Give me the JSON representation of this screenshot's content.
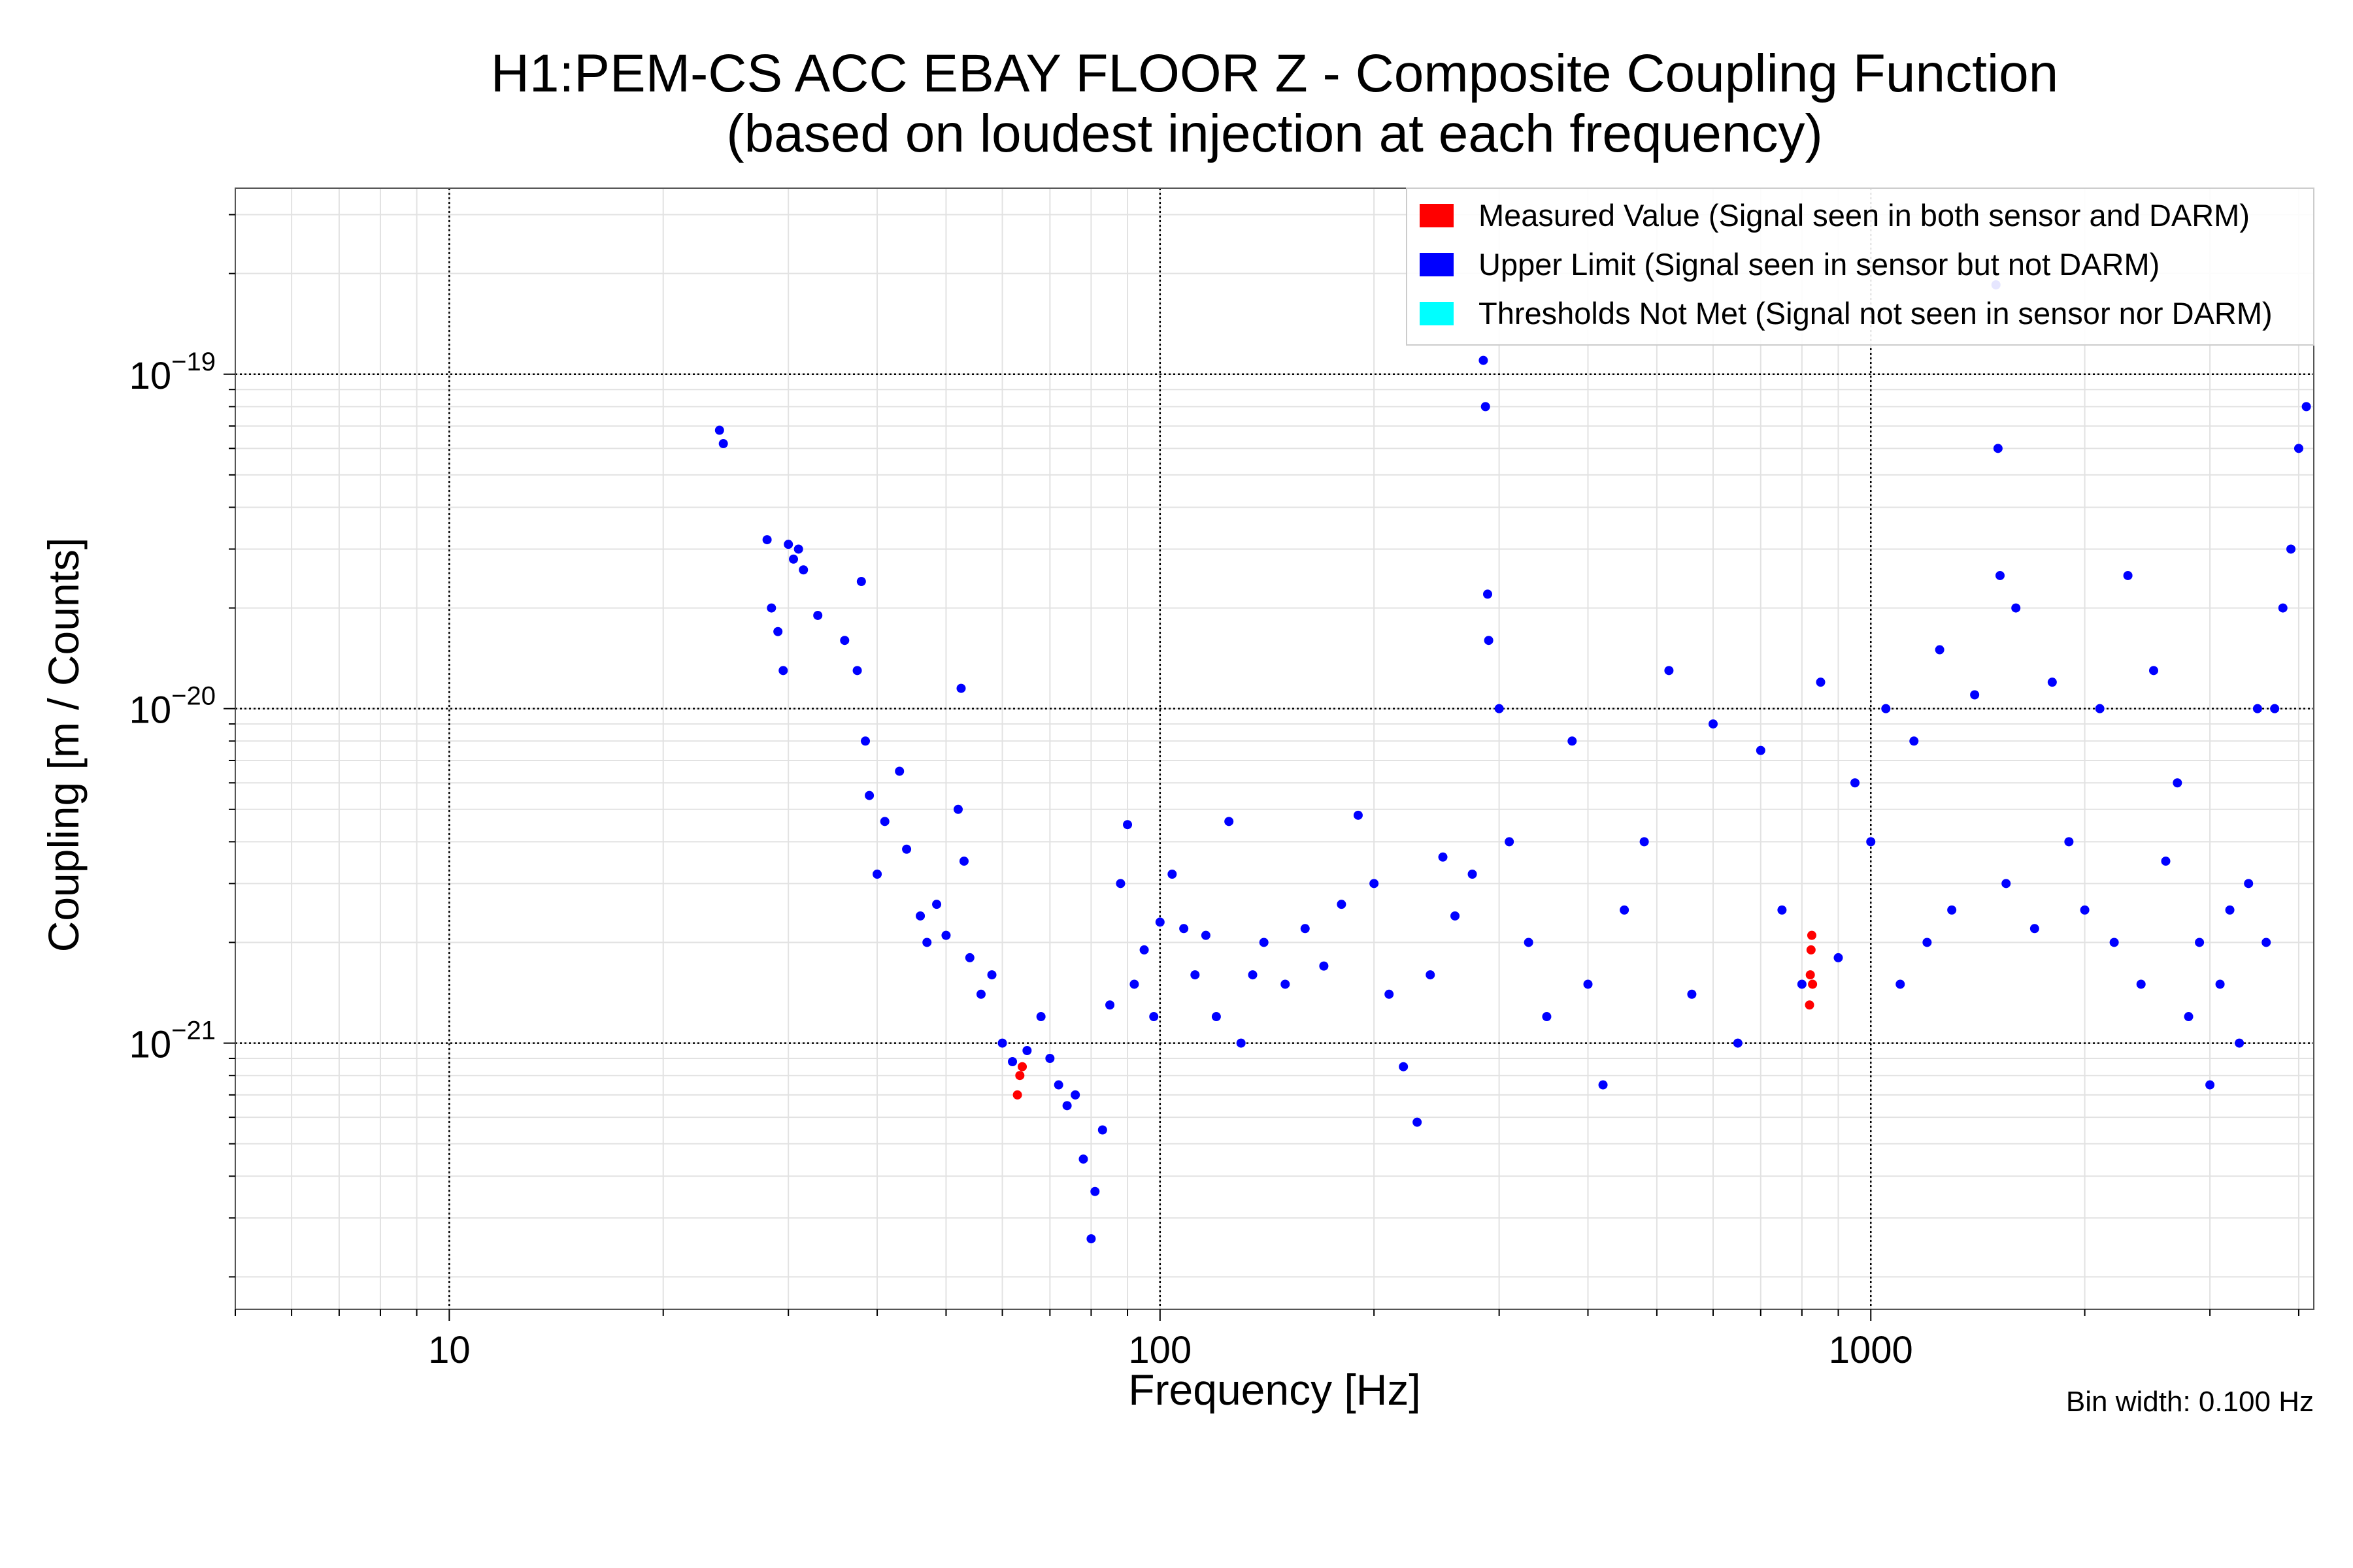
{
  "chart_data": {
    "type": "scatter",
    "title_lines": [
      "H1:PEM-CS ACC EBAY FLOOR Z - Composite Coupling Function",
      "(based on loudest injection at each frequency)"
    ],
    "xlabel": "Frequency [Hz]",
    "ylabel": "Coupling [m / Counts]",
    "xscale": "log",
    "yscale": "log",
    "xlim": [
      5,
      4200
    ],
    "ylim": [
      1.6e-22,
      3.6e-19
    ],
    "x_ticks": [
      {
        "value": 10,
        "label": "10"
      },
      {
        "value": 100,
        "label": "100"
      },
      {
        "value": 1000,
        "label": "1000"
      }
    ],
    "y_ticks": [
      {
        "value": 1e-21,
        "base": "10",
        "exp": "−21"
      },
      {
        "value": 1e-20,
        "base": "10",
        "exp": "−20"
      },
      {
        "value": 1e-19,
        "base": "10",
        "exp": "−19"
      }
    ],
    "grid": true,
    "legend_position": "top-right",
    "legend": [
      {
        "label": "Measured Value (Signal seen in both sensor and DARM)",
        "color": "#ff0000"
      },
      {
        "label": "Upper Limit (Signal seen in sensor but not DARM)",
        "color": "#0000ff"
      },
      {
        "label": "Thresholds Not Met (Signal not seen in sensor nor DARM)",
        "color": "#00ffff"
      }
    ],
    "annotation": "Bin width: 0.100 Hz",
    "series": [
      {
        "color": "#0000ff",
        "points": [
          [
            24.0,
            6.8e-20
          ],
          [
            24.3,
            6.2e-20
          ],
          [
            28.0,
            3.2e-20
          ],
          [
            28.4,
            2e-20
          ],
          [
            29.0,
            1.7e-20
          ],
          [
            29.5,
            1.3e-20
          ],
          [
            30.0,
            3.1e-20
          ],
          [
            30.5,
            2.8e-20
          ],
          [
            31.0,
            3e-20
          ],
          [
            31.5,
            2.6e-20
          ],
          [
            33.0,
            1.9e-20
          ],
          [
            36.0,
            1.6e-20
          ],
          [
            37.5,
            1.3e-20
          ],
          [
            38.0,
            2.4e-20
          ],
          [
            38.5,
            8e-21
          ],
          [
            39.0,
            5.5e-21
          ],
          [
            40.0,
            3.2e-21
          ],
          [
            41.0,
            4.6e-21
          ],
          [
            43.0,
            6.5e-21
          ],
          [
            44.0,
            3.8e-21
          ],
          [
            46.0,
            2.4e-21
          ],
          [
            47.0,
            2e-21
          ],
          [
            48.5,
            2.6e-21
          ],
          [
            50.0,
            2.1e-21
          ],
          [
            52.5,
            1.15e-20
          ],
          [
            52.0,
            5e-21
          ],
          [
            53.0,
            3.5e-21
          ],
          [
            54.0,
            1.8e-21
          ],
          [
            56.0,
            1.4e-21
          ],
          [
            58.0,
            1.6e-21
          ],
          [
            60.0,
            1e-21
          ],
          [
            62.0,
            8.8e-22
          ],
          [
            65.0,
            9.5e-22
          ],
          [
            68.0,
            1.2e-21
          ],
          [
            70.0,
            9e-22
          ],
          [
            72.0,
            7.5e-22
          ],
          [
            74.0,
            6.5e-22
          ],
          [
            76.0,
            7e-22
          ],
          [
            78.0,
            4.5e-22
          ],
          [
            80.0,
            2.6e-22
          ],
          [
            81.0,
            3.6e-22
          ],
          [
            83.0,
            5.5e-22
          ],
          [
            85.0,
            1.3e-21
          ],
          [
            88.0,
            3e-21
          ],
          [
            90.0,
            4.5e-21
          ],
          [
            92.0,
            1.5e-21
          ],
          [
            95.0,
            1.9e-21
          ],
          [
            98.0,
            1.2e-21
          ],
          [
            100.0,
            2.3e-21
          ],
          [
            104.0,
            3.2e-21
          ],
          [
            108.0,
            2.2e-21
          ],
          [
            112.0,
            1.6e-21
          ],
          [
            116.0,
            2.1e-21
          ],
          [
            120.0,
            1.2e-21
          ],
          [
            125.0,
            4.6e-21
          ],
          [
            130.0,
            1e-21
          ],
          [
            135.0,
            1.6e-21
          ],
          [
            140.0,
            2e-21
          ],
          [
            150.0,
            1.5e-21
          ],
          [
            160.0,
            2.2e-21
          ],
          [
            170.0,
            1.7e-21
          ],
          [
            180.0,
            2.6e-21
          ],
          [
            190.0,
            4.8e-21
          ],
          [
            200.0,
            3e-21
          ],
          [
            210.0,
            1.4e-21
          ],
          [
            220.0,
            8.5e-22
          ],
          [
            230.0,
            5.8e-22
          ],
          [
            240.0,
            1.6e-21
          ],
          [
            250.0,
            3.6e-21
          ],
          [
            260.0,
            2.4e-21
          ],
          [
            275.0,
            3.2e-21
          ],
          [
            285.0,
            1.1e-19
          ],
          [
            287.0,
            8e-20
          ],
          [
            289.0,
            2.2e-20
          ],
          [
            290.0,
            1.6e-20
          ],
          [
            300.0,
            1e-20
          ],
          [
            310.0,
            4e-21
          ],
          [
            330.0,
            2e-21
          ],
          [
            350.0,
            1.2e-21
          ],
          [
            380.0,
            8e-21
          ],
          [
            400.0,
            1.5e-21
          ],
          [
            420.0,
            7.5e-22
          ],
          [
            450.0,
            2.5e-21
          ],
          [
            480.0,
            4e-21
          ],
          [
            520.0,
            1.3e-20
          ],
          [
            560.0,
            1.4e-21
          ],
          [
            600.0,
            9e-21
          ],
          [
            650.0,
            1e-21
          ],
          [
            700.0,
            7.5e-21
          ],
          [
            750.0,
            2.5e-21
          ],
          [
            800.0,
            1.5e-21
          ],
          [
            850.0,
            1.2e-20
          ],
          [
            900.0,
            1.8e-21
          ],
          [
            950.0,
            6e-21
          ],
          [
            1000.0,
            4e-21
          ],
          [
            1050.0,
            1e-20
          ],
          [
            1100.0,
            1.5e-21
          ],
          [
            1150.0,
            8e-21
          ],
          [
            1200.0,
            2e-21
          ],
          [
            1250.0,
            1.5e-20
          ],
          [
            1300.0,
            2.5e-21
          ],
          [
            1400.0,
            1.1e-20
          ],
          [
            1500.0,
            1.85e-19
          ],
          [
            1510.0,
            6e-20
          ],
          [
            1520.0,
            2.5e-20
          ],
          [
            1550.0,
            3e-21
          ],
          [
            1600.0,
            2e-20
          ],
          [
            1700.0,
            2.2e-21
          ],
          [
            1800.0,
            1.2e-20
          ],
          [
            1900.0,
            4e-21
          ],
          [
            2000.0,
            2.5e-21
          ],
          [
            2100.0,
            1e-20
          ],
          [
            2200.0,
            2e-21
          ],
          [
            2300.0,
            2.5e-20
          ],
          [
            2400.0,
            1.5e-21
          ],
          [
            2500.0,
            1.3e-20
          ],
          [
            2600.0,
            3.5e-21
          ],
          [
            2700.0,
            6e-21
          ],
          [
            2800.0,
            1.2e-21
          ],
          [
            2900.0,
            2e-21
          ],
          [
            3000.0,
            7.5e-22
          ],
          [
            3100.0,
            1.5e-21
          ],
          [
            3200.0,
            2.5e-21
          ],
          [
            3300.0,
            1e-21
          ],
          [
            3400.0,
            3e-21
          ],
          [
            3500.0,
            1e-20
          ],
          [
            3600.0,
            2e-21
          ],
          [
            3700.0,
            1e-20
          ],
          [
            3800.0,
            2e-20
          ],
          [
            3900.0,
            3e-20
          ],
          [
            4000.0,
            6e-20
          ],
          [
            4100.0,
            8e-20
          ]
        ]
      },
      {
        "color": "#ff0000",
        "points": [
          [
            63.0,
            7e-22
          ],
          [
            63.5,
            8e-22
          ],
          [
            64.0,
            8.5e-22
          ],
          [
            820.0,
            1.3e-21
          ],
          [
            822.0,
            1.6e-21
          ],
          [
            824.0,
            1.9e-21
          ],
          [
            826.0,
            2.1e-21
          ],
          [
            828.0,
            1.5e-21
          ]
        ]
      }
    ]
  }
}
